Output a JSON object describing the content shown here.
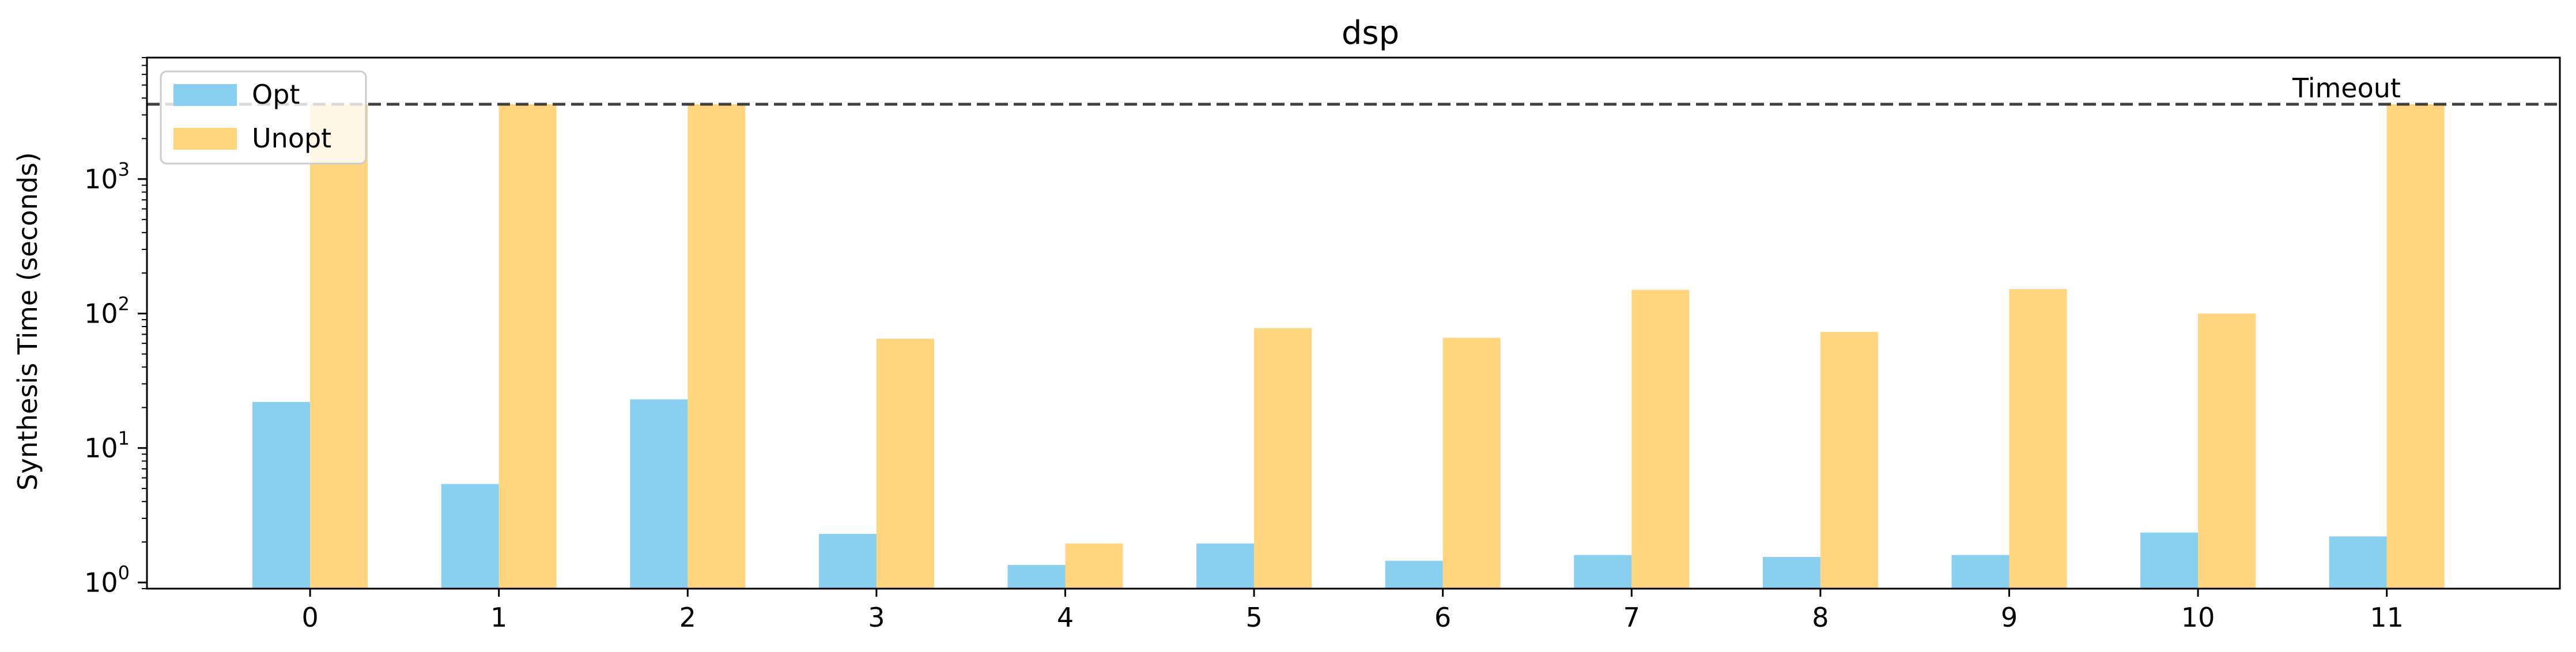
{
  "chart_data": {
    "type": "bar",
    "title": "dsp",
    "xlabel": "",
    "ylabel": "Synthesis Time (seconds)",
    "yscale": "log",
    "ylim": [
      0.9,
      8000
    ],
    "y_ticks": [
      {
        "value": 1,
        "base": "10",
        "exp": "0"
      },
      {
        "value": 10,
        "base": "10",
        "exp": "1"
      },
      {
        "value": 100,
        "base": "10",
        "exp": "2"
      },
      {
        "value": 1000,
        "base": "10",
        "exp": "3"
      }
    ],
    "categories": [
      "0",
      "1",
      "2",
      "3",
      "4",
      "5",
      "6",
      "7",
      "8",
      "9",
      "10",
      "11"
    ],
    "series": [
      {
        "name": "Opt",
        "color": "#89CFF0",
        "values": [
          22,
          5.4,
          23,
          2.3,
          1.35,
          1.95,
          1.45,
          1.6,
          1.55,
          1.6,
          2.35,
          2.2
        ]
      },
      {
        "name": "Unopt",
        "color": "#FFD580",
        "values": [
          3600,
          3600,
          3600,
          65,
          1.95,
          78,
          66,
          150,
          73,
          152,
          100,
          3600
        ]
      }
    ],
    "reference_line": {
      "value": 3600,
      "label": "Timeout",
      "style": "dashed",
      "color": "#404040"
    },
    "legend": {
      "position": "top-left"
    },
    "grid": false
  }
}
